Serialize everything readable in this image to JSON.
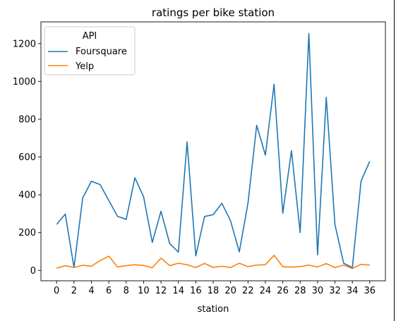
{
  "chart_data": {
    "type": "line",
    "title": "ratings per bike station",
    "xlabel": "station",
    "ylabel": "",
    "xlim": [
      -1.8,
      37.8
    ],
    "ylim": [
      -55,
      1315
    ],
    "xticks": [
      0,
      2,
      4,
      6,
      8,
      10,
      12,
      14,
      16,
      18,
      20,
      22,
      24,
      26,
      28,
      30,
      32,
      34,
      36
    ],
    "yticks": [
      0,
      200,
      400,
      600,
      800,
      1000,
      1200
    ],
    "grid": false,
    "legend": {
      "title": "API",
      "placement": "top-left"
    },
    "x": [
      0,
      1,
      2,
      3,
      4,
      5,
      6,
      7,
      8,
      9,
      10,
      11,
      12,
      13,
      14,
      15,
      16,
      17,
      18,
      19,
      20,
      21,
      22,
      23,
      24,
      25,
      26,
      27,
      28,
      29,
      30,
      31,
      32,
      33,
      34,
      35,
      36
    ],
    "series": [
      {
        "name": "Foursquare",
        "color": "#1f77b4",
        "values": [
          243,
          298,
          15,
          383,
          472,
          454,
          370,
          286,
          270,
          490,
          390,
          148,
          313,
          142,
          97,
          680,
          77,
          285,
          295,
          355,
          262,
          98,
          355,
          768,
          610,
          985,
          302,
          633,
          200,
          1253,
          82,
          916,
          242,
          38,
          15,
          472,
          578
        ]
      },
      {
        "name": "Yelp",
        "color": "#ff7f0e",
        "values": [
          12,
          25,
          15,
          27,
          22,
          52,
          75,
          18,
          25,
          30,
          26,
          14,
          65,
          25,
          38,
          30,
          15,
          37,
          16,
          22,
          15,
          38,
          20,
          28,
          30,
          80,
          20,
          17,
          20,
          28,
          18,
          36,
          15,
          28,
          10,
          32,
          28
        ]
      }
    ]
  }
}
